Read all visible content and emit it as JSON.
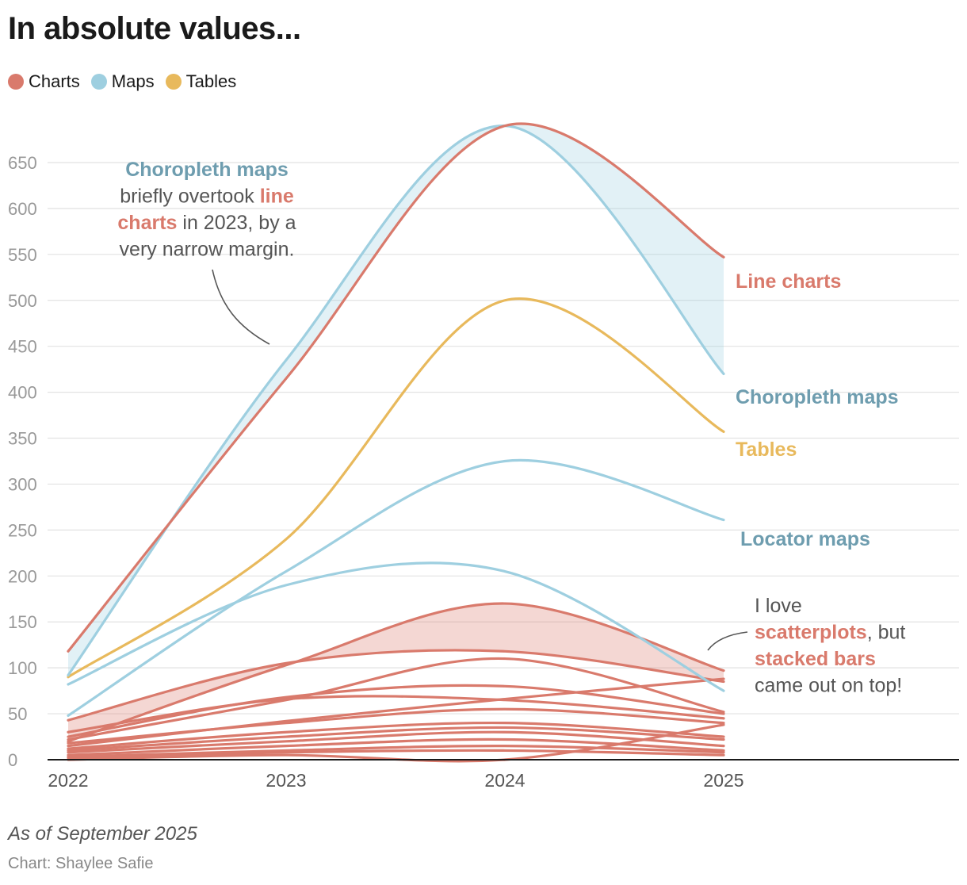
{
  "title": "In absolute values...",
  "legend": [
    {
      "label": "Charts",
      "color": "#d97a6c"
    },
    {
      "label": "Maps",
      "color": "#9ecfe0"
    },
    {
      "label": "Tables",
      "color": "#e8b95c"
    }
  ],
  "note": "As of September 2025",
  "credit": "Chart: Shaylee Safie",
  "chart_data": {
    "type": "line",
    "x": [
      2022,
      2023,
      2024,
      2025
    ],
    "x_tick_labels": [
      "2022",
      "2023",
      "2024",
      "2025"
    ],
    "y_ticks": [
      0,
      50,
      100,
      150,
      200,
      250,
      300,
      350,
      400,
      450,
      500,
      550,
      600,
      650
    ],
    "ylim": [
      0,
      690
    ],
    "grid": true,
    "legend_position": "top-left",
    "series": [
      {
        "name": "Line charts",
        "category": "Charts",
        "color": "#d97a6c",
        "labeled": true,
        "values": [
          118,
          415,
          690,
          547
        ]
      },
      {
        "name": "Choropleth maps",
        "category": "Maps",
        "color": "#9ecfe0",
        "labeled": true,
        "values": [
          92,
          435,
          690,
          420
        ]
      },
      {
        "name": "Tables",
        "category": "Tables",
        "color": "#e8b95c",
        "labeled": true,
        "values": [
          90,
          240,
          500,
          357
        ]
      },
      {
        "name": "Locator maps",
        "category": "Maps",
        "color": "#9ecfe0",
        "labeled": true,
        "values": [
          48,
          205,
          325,
          261
        ]
      },
      {
        "category": "Maps",
        "color": "#9ecfe0",
        "values": [
          82,
          190,
          205,
          75
        ]
      },
      {
        "name": "Stacked bars",
        "category": "Charts",
        "color": "#d97a6c",
        "values": [
          20,
          103,
          170,
          97
        ]
      },
      {
        "name": "Scatterplots",
        "category": "Charts",
        "color": "#d97a6c",
        "values": [
          43,
          105,
          118,
          85
        ]
      },
      {
        "category": "Charts",
        "color": "#d97a6c",
        "values": [
          22,
          65,
          110,
          52
        ]
      },
      {
        "category": "Charts",
        "color": "#d97a6c",
        "values": [
          25,
          68,
          80,
          50
        ]
      },
      {
        "category": "Charts",
        "color": "#d97a6c",
        "values": [
          30,
          66,
          65,
          45
        ]
      },
      {
        "category": "Charts",
        "color": "#d97a6c",
        "values": [
          15,
          42,
          66,
          88
        ]
      },
      {
        "category": "Charts",
        "color": "#d97a6c",
        "values": [
          18,
          40,
          55,
          40
        ]
      },
      {
        "category": "Charts",
        "color": "#d97a6c",
        "values": [
          12,
          30,
          40,
          25
        ]
      },
      {
        "category": "Charts",
        "color": "#d97a6c",
        "values": [
          10,
          25,
          35,
          22
        ]
      },
      {
        "category": "Charts",
        "color": "#d97a6c",
        "values": [
          8,
          20,
          30,
          15
        ]
      },
      {
        "category": "Charts",
        "color": "#d97a6c",
        "values": [
          5,
          15,
          22,
          10
        ]
      },
      {
        "category": "Charts",
        "color": "#d97a6c",
        "values": [
          3,
          10,
          15,
          8
        ]
      },
      {
        "category": "Charts",
        "color": "#d97a6c",
        "values": [
          2,
          8,
          10,
          5
        ]
      },
      {
        "category": "Charts",
        "color": "#d97a6c",
        "values": [
          0,
          5,
          0,
          38
        ]
      }
    ],
    "series_labels": [
      {
        "text": "Line charts",
        "color": "#d97a6c"
      },
      {
        "text": "Choropleth maps",
        "color": "#6e9daf"
      },
      {
        "text": "Tables",
        "color": "#e8b95c"
      },
      {
        "text": "Locator maps",
        "color": "#6e9daf"
      }
    ],
    "annotations": [
      {
        "lines": [
          [
            {
              "text": "Choropleth maps",
              "color": "#6e9daf",
              "bold": true
            }
          ],
          [
            {
              "text": "briefly overtook ",
              "color": "#555555",
              "bold": false
            },
            {
              "text": "line",
              "color": "#d97a6c",
              "bold": true
            }
          ],
          [
            {
              "text": "charts",
              "color": "#d97a6c",
              "bold": true
            },
            {
              "text": " in 2023, by a",
              "color": "#555555",
              "bold": false
            }
          ],
          [
            {
              "text": "very narrow margin.",
              "color": "#555555",
              "bold": false
            }
          ]
        ]
      },
      {
        "lines": [
          [
            {
              "text": "I love",
              "color": "#555555",
              "bold": false
            }
          ],
          [
            {
              "text": "scatterplots",
              "color": "#d97a6c",
              "bold": true
            },
            {
              "text": ", but",
              "color": "#555555",
              "bold": false
            }
          ],
          [
            {
              "text": "stacked bars",
              "color": "#d97a6c",
              "bold": true
            }
          ],
          [
            {
              "text": "came out on top!",
              "color": "#555555",
              "bold": false
            }
          ]
        ]
      }
    ]
  }
}
